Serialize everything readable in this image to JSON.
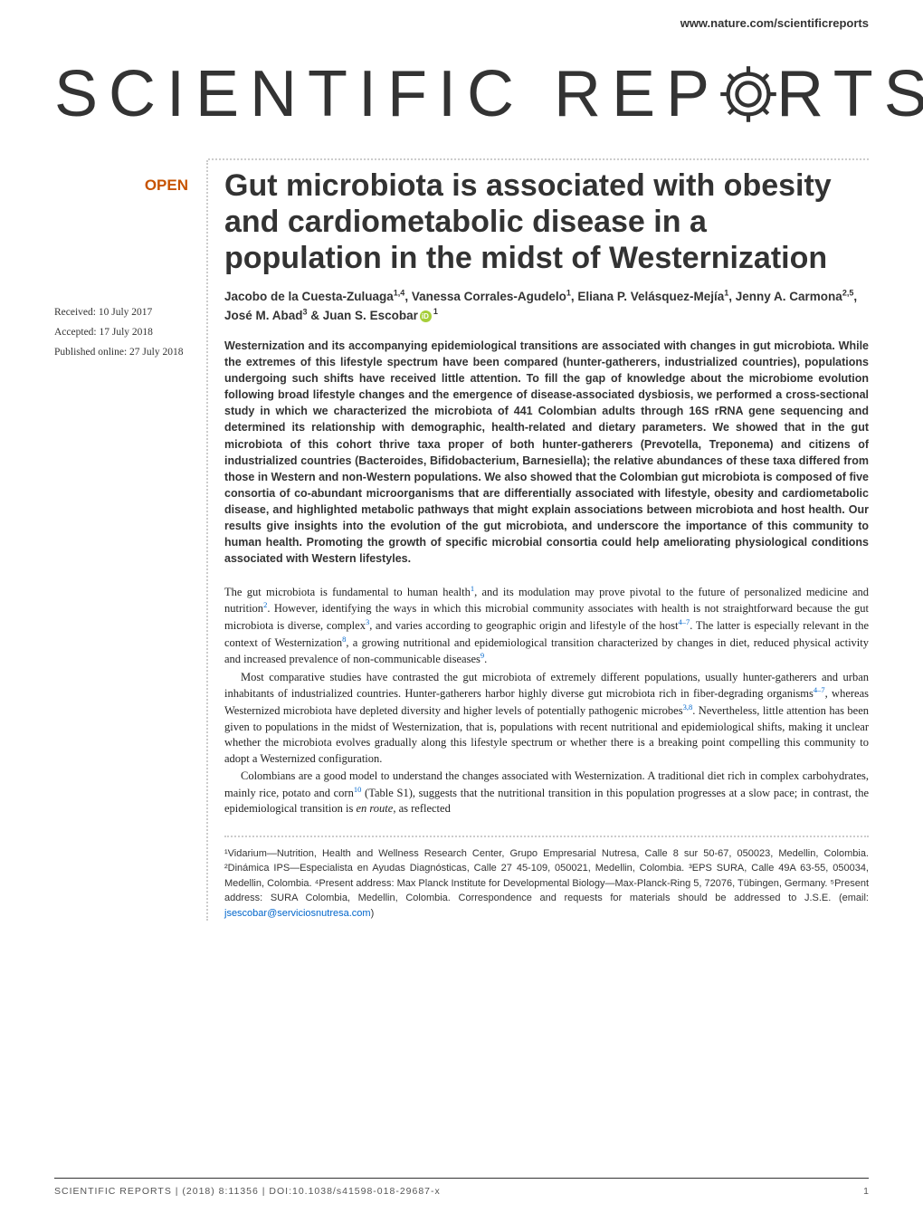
{
  "header": {
    "url": "www.nature.com/scientificreports",
    "journal_logo_pre": "SCIENTIFIC",
    "journal_logo_post": "REP",
    "journal_logo_end": "RTS"
  },
  "badges": {
    "open": "OPEN"
  },
  "dates": {
    "received": "Received: 10 July 2017",
    "accepted": "Accepted: 17 July 2018",
    "published": "Published online: 27 July 2018"
  },
  "title": "Gut microbiota is associated with obesity and cardiometabolic disease in a population in the midst of Westernization",
  "authors_html": "Jacobo de la Cuesta-Zuluaga<sup>1,4</sup>, Vanessa Corrales-Agudelo<sup>1</sup>, Eliana P. Velásquez-Mejía<sup>1</sup>, Jenny A. Carmona<sup>2,5</sup>, José M. Abad<sup>3</sup> & Juan S. Escobar",
  "authors_last_sup": "1",
  "abstract": "Westernization and its accompanying epidemiological transitions are associated with changes in gut microbiota. While the extremes of this lifestyle spectrum have been compared (hunter-gatherers, industrialized countries), populations undergoing such shifts have received little attention. To fill the gap of knowledge about the microbiome evolution following broad lifestyle changes and the emergence of disease-associated dysbiosis, we performed a cross-sectional study in which we characterized the microbiota of 441 Colombian adults through 16S rRNA gene sequencing and determined its relationship with demographic, health-related and dietary parameters. We showed that in the gut microbiota of this cohort thrive taxa proper of both hunter-gatherers (Prevotella, Treponema) and citizens of industrialized countries (Bacteroides, Bifidobacterium, Barnesiella); the relative abundances of these taxa differed from those in Western and non-Western populations. We also showed that the Colombian gut microbiota is composed of five consortia of co-abundant microorganisms that are differentially associated with lifestyle, obesity and cardiometabolic disease, and highlighted metabolic pathways that might explain associations between microbiota and host health. Our results give insights into the evolution of the gut microbiota, and underscore the importance of this community to human health. Promoting the growth of specific microbial consortia could help ameliorating physiological conditions associated with Western lifestyles.",
  "body": {
    "p1": "The gut microbiota is fundamental to human health",
    "p1b": ", and its modulation may prove pivotal to the future of personalized medicine and nutrition",
    "p1c": ". However, identifying the ways in which this microbial community associates with health is not straightforward because the gut microbiota is diverse, complex",
    "p1d": ", and varies according to geographic origin and lifestyle of the host",
    "p1e": ". The latter is especially relevant in the context of Westernization",
    "p1f": ", a growing nutritional and epidemiological transition characterized by changes in diet, reduced physical activity and increased prevalence of non-communicable diseases",
    "p1g": ".",
    "p2a": "Most comparative studies have contrasted the gut microbiota of extremely different populations, usually hunter-gatherers and urban inhabitants of industrialized countries. Hunter-gatherers harbor highly diverse gut microbiota rich in fiber-degrading organisms",
    "p2b": ", whereas Westernized microbiota have depleted diversity and higher levels of potentially pathogenic microbes",
    "p2c": ". Nevertheless, little attention has been given to populations in the midst of Westernization, that is, populations with recent nutritional and epidemiological shifts, making it unclear whether the microbiota evolves gradually along this lifestyle spectrum or whether there is a breaking point compelling this community to adopt a Westernized configuration.",
    "p3a": "Colombians are a good model to understand the changes associated with Westernization. A traditional diet rich in complex carbohydrates, mainly rice, potato and corn",
    "p3b": " (Table S1), suggests that the nutritional transition in this population progresses at a slow pace; in contrast, the epidemiological transition is ",
    "p3c": "en route",
    "p3d": ", as reflected"
  },
  "refs": {
    "r1": "1",
    "r2": "2",
    "r3": "3",
    "r47": "4–7",
    "r8": "8",
    "r9": "9",
    "r38": "3,8",
    "r10": "10"
  },
  "affiliations": "¹Vidarium—Nutrition, Health and Wellness Research Center, Grupo Empresarial Nutresa, Calle 8 sur 50-67, 050023, Medellin, Colombia. ²Dinámica IPS—Especialista en Ayudas Diagnósticas, Calle 27 45-109, 050021, Medellin, Colombia. ³EPS SURA, Calle 49A 63-55, 050034, Medellin, Colombia. ⁴Present address: Max Planck Institute for Developmental Biology—Max-Planck-Ring 5, 72076, Tübingen, Germany. ⁵Present address: SURA Colombia, Medellin, Colombia. Correspondence and requests for materials should be addressed to J.S.E. (email: ",
  "email": "jsescobar@serviciosnutresa.com",
  "affil_end": ")",
  "footer": {
    "journal": "SCIENTIFIC REPORTS",
    "citation": " |  (2018) 8:11356  | DOI:10.1038/s41598-018-29687-x",
    "page": "1"
  },
  "colors": {
    "accent": "#c75300",
    "link": "#0066cc",
    "orcid": "#a6ce39",
    "text": "#333333"
  }
}
